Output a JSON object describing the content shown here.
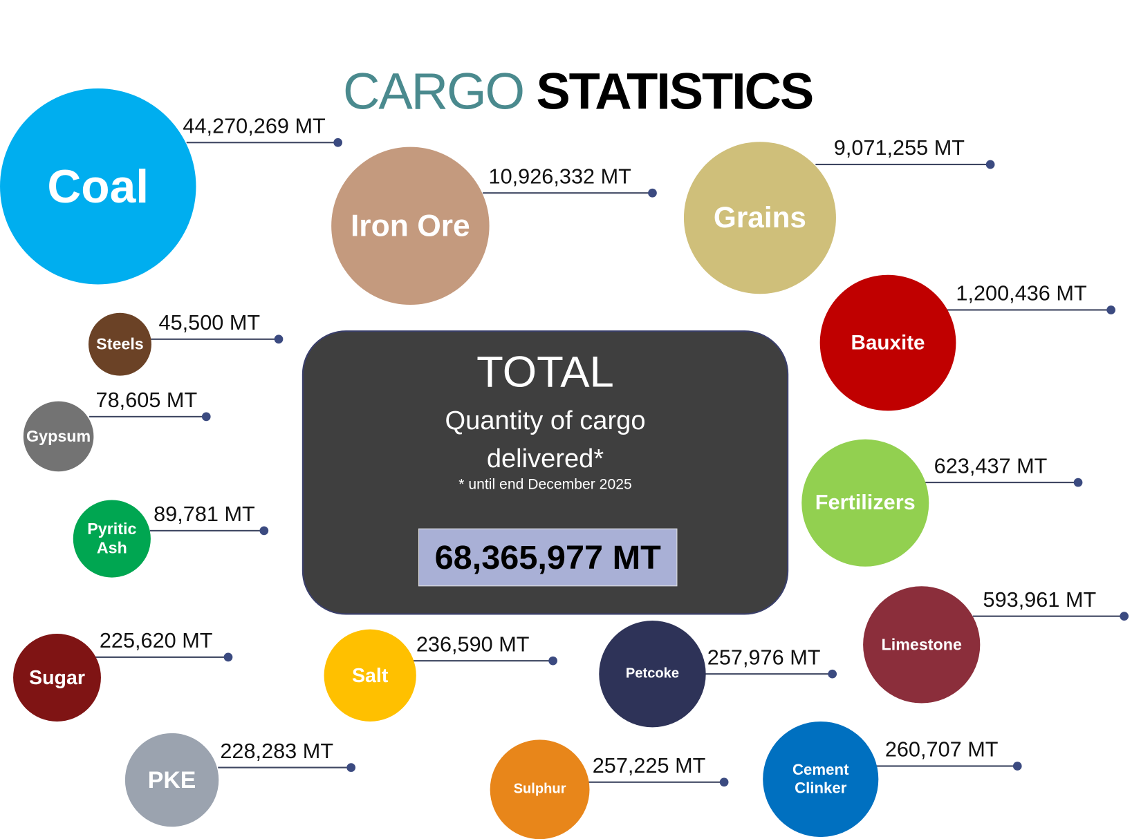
{
  "title": {
    "part1": "CARGO",
    "part2": "STATISTICS"
  },
  "total": {
    "heading": "TOTAL",
    "subtitle_line1": "Quantity of cargo",
    "subtitle_line2": "delivered*",
    "note": "* until end December 2025",
    "value": "68,365,977 MT"
  },
  "cargo": [
    {
      "label": "Coal",
      "value": "44,270,269 MT",
      "color": "#00AEEF"
    },
    {
      "label": "Iron Ore",
      "value": "10,926,332 MT",
      "color": "#C49A7E"
    },
    {
      "label": "Grains",
      "value": "9,071,255 MT",
      "color": "#CFBF7A"
    },
    {
      "label": "Bauxite",
      "value": "1,200,436 MT",
      "color": "#C00000"
    },
    {
      "label": "Steels",
      "value": "45,500 MT",
      "color": "#6B4226"
    },
    {
      "label": "Gypsum",
      "value": "78,605 MT",
      "color": "#737373"
    },
    {
      "label": "Pyritic Ash",
      "value": "89,781 MT",
      "color": "#00A651"
    },
    {
      "label": "Fertilizers",
      "value": "623,437 MT",
      "color": "#92D050"
    },
    {
      "label": "Limestone",
      "value": "593,961 MT",
      "color": "#8B2E3B"
    },
    {
      "label": "Sugar",
      "value": "225,620 MT",
      "color": "#7F1414"
    },
    {
      "label": "Salt",
      "value": "236,590 MT",
      "color": "#FFC000"
    },
    {
      "label": "Petcoke",
      "value": "257,976 MT",
      "color": "#2E3358"
    },
    {
      "label": "PKE",
      "value": "228,283 MT",
      "color": "#9BA3AF"
    },
    {
      "label": "Sulphur",
      "value": "257,225 MT",
      "color": "#E8861A"
    },
    {
      "label": "Cement Clinker",
      "value": "260,707 MT",
      "color": "#0070C0"
    }
  ]
}
